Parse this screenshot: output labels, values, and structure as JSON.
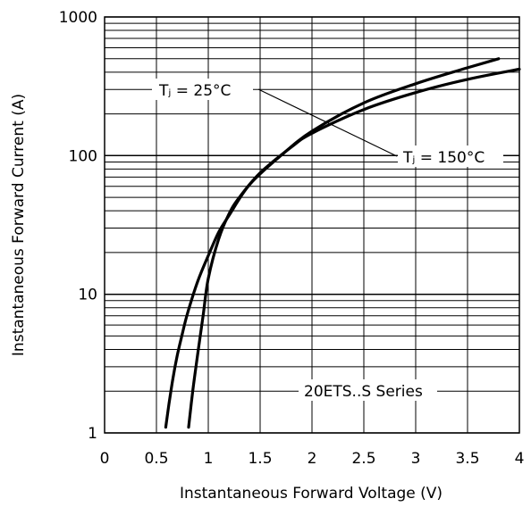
{
  "chart_data": {
    "type": "line",
    "xlabel": "Instantaneous Forward Voltage (V)",
    "ylabel": "Instantaneous Forward Current (A)",
    "xlim": [
      0,
      4
    ],
    "ylim": [
      1,
      1000
    ],
    "yscale": "log",
    "grid": true,
    "xticks": [
      "0",
      "0.5",
      "1",
      "1.5",
      "2",
      "2.5",
      "3",
      "3.5",
      "4"
    ],
    "yticks": [
      "1",
      "10",
      "100",
      "1000"
    ],
    "annotations": {
      "series_label": "20ETS..S Series",
      "tj25_label": "Tⱼ = 25°C",
      "tj150_label": "Tⱼ = 150°C"
    },
    "series": [
      {
        "name": "Tⱼ = 25°C",
        "x": [
          0.81,
          0.85,
          0.9,
          0.95,
          1.0,
          1.1,
          1.2,
          1.3,
          1.5,
          1.8,
          2.0,
          2.5,
          3.0,
          3.5,
          4.0
        ],
        "y": [
          1.1,
          2,
          3.8,
          7,
          13,
          25,
          38,
          50,
          75,
          115,
          145,
          215,
          285,
          355,
          420
        ]
      },
      {
        "name": "Tⱼ = 150°C",
        "x": [
          0.59,
          0.62,
          0.66,
          0.7,
          0.75,
          0.8,
          0.9,
          1.0,
          1.1,
          1.2,
          1.4,
          1.7,
          2.0,
          2.5,
          3.0,
          3.5,
          3.8
        ],
        "y": [
          1.1,
          1.6,
          2.5,
          3.6,
          5.2,
          7.3,
          12.5,
          19,
          28,
          37,
          62,
          100,
          150,
          240,
          330,
          430,
          500
        ]
      }
    ]
  }
}
